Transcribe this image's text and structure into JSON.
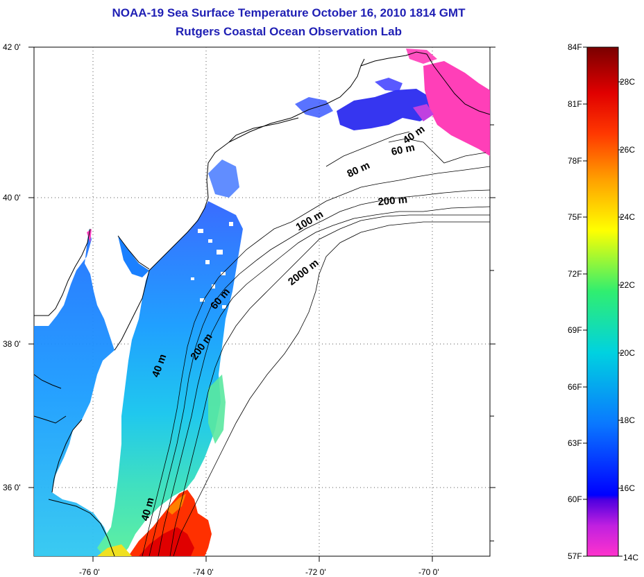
{
  "title": "NOAA-19 Sea Surface Temperature October 16, 2010 1814 GMT",
  "subtitle": "Rutgers Coastal Ocean Observation Lab",
  "lat_labels": [
    "42 0'",
    "40 0'",
    "38 0'",
    "36 0'"
  ],
  "lon_labels": [
    "-76 0'",
    "-74 0'",
    "-72 0'",
    "-70 0'"
  ],
  "contour_labels": [
    "40 m",
    "60 m",
    "80 m",
    "200 m",
    "100 m",
    "2000 m",
    "60 m",
    "200 m",
    "40 m",
    "40 m"
  ],
  "colorbar": {
    "fahrenheit": [
      "84F",
      "81F",
      "78F",
      "75F",
      "72F",
      "69F",
      "66F",
      "63F",
      "60F",
      "57F"
    ],
    "celsius": [
      "28C",
      "26C",
      "24C",
      "22C",
      "20C",
      "18C",
      "16C",
      "14C"
    ],
    "colors": [
      "#ff33cc",
      "#8a2be2",
      "#0000ff",
      "#0a78ff",
      "#00c8e0",
      "#20e880",
      "#ffff00",
      "#ffa000",
      "#ff4000",
      "#e00000",
      "#800000"
    ]
  },
  "colors": {
    "title": "#1f1fb4",
    "water_cool": "#1e8fff",
    "water_warm": "#ff3000",
    "shelf_cold": "#2020ee",
    "cold_magenta": "#ff3fb8"
  }
}
